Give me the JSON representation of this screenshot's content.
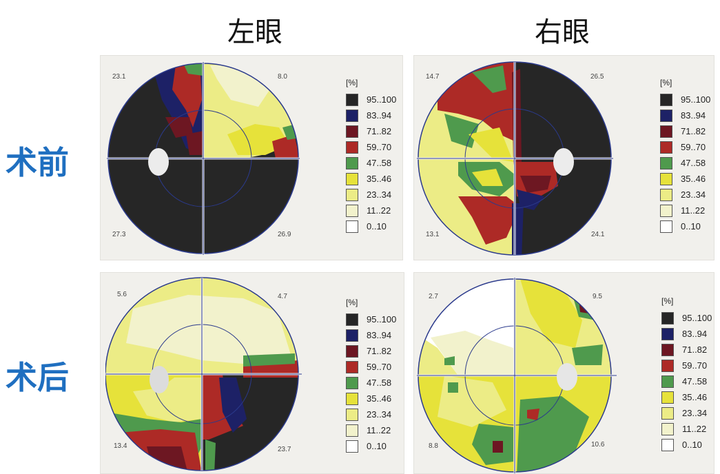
{
  "headers": {
    "left_eye": "左眼",
    "right_eye": "右眼",
    "before": "术前",
    "after": "术后"
  },
  "legend": {
    "unit": "[%]",
    "items": [
      {
        "label": "95..100",
        "color": "#262626"
      },
      {
        "label": "83..94",
        "color": "#1d2166"
      },
      {
        "label": "71..82",
        "color": "#6d1722"
      },
      {
        "label": "59..70",
        "color": "#ad2a26"
      },
      {
        "label": "47..58",
        "color": "#4f9a4d"
      },
      {
        "label": "35..46",
        "color": "#e6e23a"
      },
      {
        "label": "23..34",
        "color": "#ecec86"
      },
      {
        "label": "11..22",
        "color": "#f2f2cc"
      },
      {
        "label": "0..10",
        "color": "#ffffff"
      }
    ]
  },
  "panels": {
    "pre_left": {
      "tl": "23.1",
      "tr": "8.0",
      "bl": "27.3",
      "br": "26.9"
    },
    "pre_right": {
      "tl": "14.7",
      "tr": "26.5",
      "bl": "13.1",
      "br": "24.1"
    },
    "post_left": {
      "tl": "5.6",
      "tr": "4.7",
      "bl": "13.4",
      "br": "23.7"
    },
    "post_right": {
      "tl": "2.7",
      "tr": "9.5",
      "bl": "8.8",
      "br": "10.6"
    }
  }
}
